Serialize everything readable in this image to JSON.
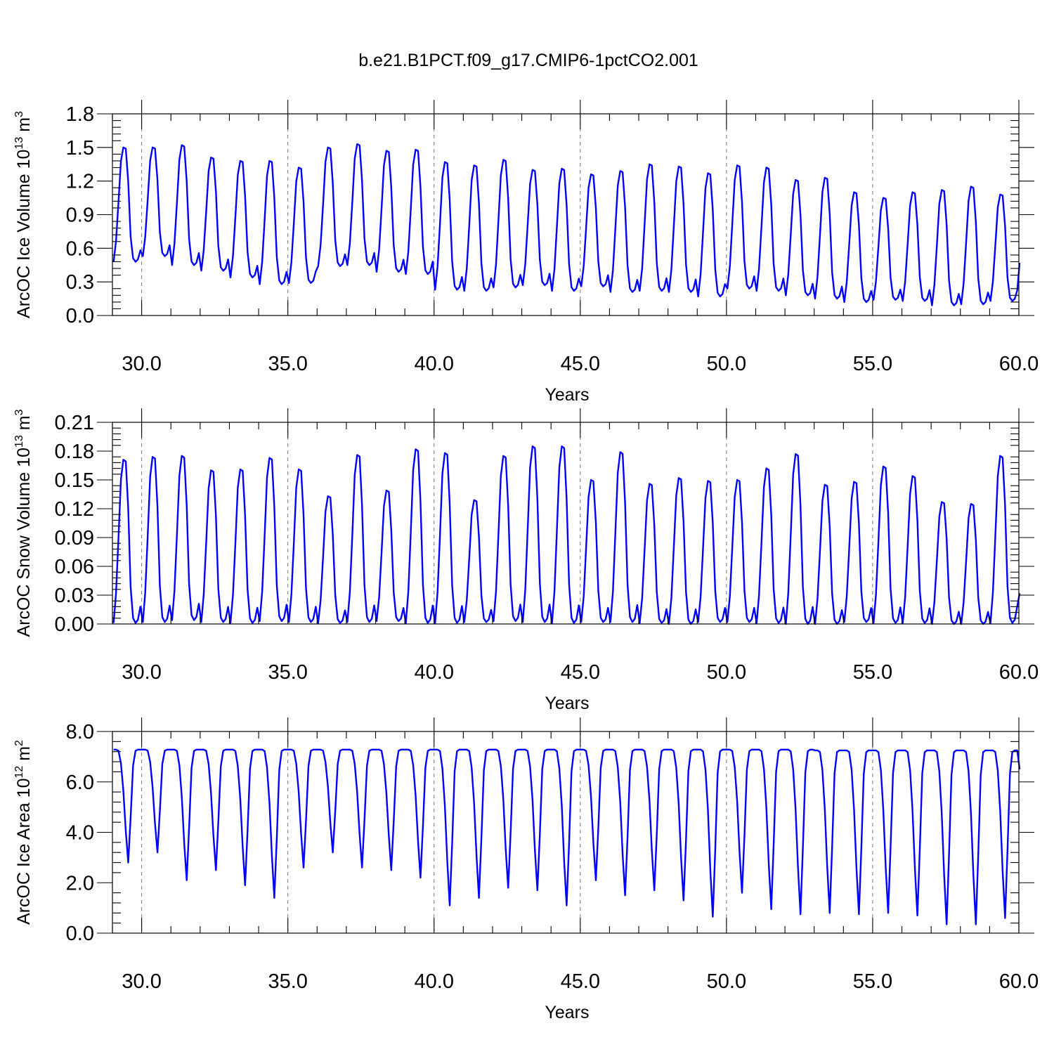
{
  "title": "b.e21.B1PCT.f09_g17.CMIP6-1pctCO2.001",
  "colors": {
    "series": "#0000ff",
    "reference": "#777777",
    "axis": "#000000"
  },
  "chart_data": [
    {
      "type": "line",
      "xlabel": "Years",
      "ylabel": "ArcOC Ice Volume 10",
      "ylabel_exp": "13",
      "ylabel_unit": " m",
      "ylabel_unit_exp": "3",
      "xlim": [
        29.0,
        60.0
      ],
      "ylim": [
        0.0,
        1.8
      ],
      "xticks": [
        "30.0",
        "35.0",
        "40.0",
        "45.0",
        "50.0",
        "55.0",
        "60.0"
      ],
      "yticks": [
        "0.0",
        "0.3",
        "0.6",
        "0.9",
        "1.2",
        "1.5",
        "1.8"
      ],
      "reference_lines_x": [
        30,
        35,
        40,
        45,
        50,
        55
      ],
      "series": [
        {
          "x_start": 29.04,
          "x_step": 0.0833,
          "annual_max": [
            1.5,
            1.5,
            1.52,
            1.41,
            1.38,
            1.38,
            1.32,
            1.5,
            1.53,
            1.47,
            1.48,
            1.37,
            1.34,
            1.39,
            1.3,
            1.31,
            1.26,
            1.29,
            1.35,
            1.33,
            1.27,
            1.34,
            1.32,
            1.21,
            1.23,
            1.1,
            1.05,
            1.1,
            1.12,
            1.15,
            1.08
          ],
          "annual_min": [
            0.48,
            0.53,
            0.45,
            0.4,
            0.34,
            0.28,
            0.29,
            0.44,
            0.45,
            0.39,
            0.37,
            0.23,
            0.22,
            0.25,
            0.27,
            0.22,
            0.26,
            0.21,
            0.22,
            0.21,
            0.17,
            0.24,
            0.22,
            0.18,
            0.15,
            0.12,
            0.14,
            0.13,
            0.09,
            0.1,
            0.13
          ],
          "end_value": 0.47
        }
      ]
    },
    {
      "type": "line",
      "xlabel": "Years",
      "ylabel": "ArcOC Snow Volume 10",
      "ylabel_exp": "13",
      "ylabel_unit": " m",
      "ylabel_unit_exp": "3",
      "xlim": [
        29.0,
        60.0
      ],
      "ylim": [
        0.0,
        0.21
      ],
      "xticks": [
        "30.0",
        "35.0",
        "40.0",
        "45.0",
        "50.0",
        "55.0",
        "60.0"
      ],
      "yticks": [
        "0.00",
        "0.03",
        "0.06",
        "0.09",
        "0.12",
        "0.15",
        "0.18",
        "0.21"
      ],
      "reference_lines_x": [
        30,
        35,
        40,
        45,
        50,
        55
      ],
      "series": [
        {
          "x_start": 29.04,
          "x_step": 0.0833,
          "annual_max": [
            0.171,
            0.174,
            0.175,
            0.16,
            0.161,
            0.173,
            0.161,
            0.133,
            0.176,
            0.139,
            0.182,
            0.178,
            0.129,
            0.175,
            0.185,
            0.185,
            0.15,
            0.179,
            0.146,
            0.152,
            0.149,
            0.15,
            0.162,
            0.177,
            0.145,
            0.148,
            0.164,
            0.154,
            0.127,
            0.125,
            0.175
          ],
          "annual_min": [
            0.001,
            0.002,
            0.004,
            0.002,
            0.001,
            0.003,
            0.002,
            0.001,
            0.002,
            0.003,
            0.001,
            0.001,
            0.002,
            0.003,
            0.002,
            0.001,
            0.002,
            0.002,
            0.001,
            0.0,
            0.002,
            0.002,
            0.001,
            0.0,
            0.0,
            0.002,
            0.001,
            0.001,
            0.0,
            0.0,
            0.001
          ],
          "end_value": 0.032
        }
      ]
    },
    {
      "type": "line",
      "xlabel": "Years",
      "ylabel": "ArcOC Ice Area 10",
      "ylabel_exp": "12",
      "ylabel_unit": " m",
      "ylabel_unit_exp": "2",
      "xlim": [
        29.0,
        60.0
      ],
      "ylim": [
        0.0,
        8.0
      ],
      "xticks": [
        "30.0",
        "35.0",
        "40.0",
        "45.0",
        "50.0",
        "55.0",
        "60.0"
      ],
      "yticks": [
        "0.0",
        "2.0",
        "4.0",
        "6.0",
        "8.0"
      ],
      "reference_lines_x": [
        30,
        35,
        40,
        45,
        50,
        55
      ],
      "series": [
        {
          "x_start": 29.04,
          "x_step": 0.0833,
          "annual_max": [
            7.28,
            7.28,
            7.28,
            7.28,
            7.28,
            7.28,
            7.28,
            7.28,
            7.28,
            7.28,
            7.28,
            7.28,
            7.28,
            7.28,
            7.28,
            7.28,
            7.28,
            7.28,
            7.28,
            7.28,
            7.28,
            7.28,
            7.28,
            7.28,
            7.25,
            7.25,
            7.25,
            7.25,
            7.25,
            7.25,
            7.25
          ],
          "annual_min": [
            2.8,
            3.2,
            2.1,
            2.5,
            1.9,
            1.4,
            2.6,
            3.2,
            2.6,
            2.5,
            2.2,
            1.1,
            1.4,
            1.8,
            1.7,
            1.1,
            2.1,
            1.5,
            1.7,
            1.3,
            0.65,
            1.6,
            0.95,
            0.75,
            0.8,
            0.75,
            0.8,
            0.7,
            0.35,
            0.35,
            0.6
          ],
          "end_value": 6.5
        }
      ]
    }
  ]
}
